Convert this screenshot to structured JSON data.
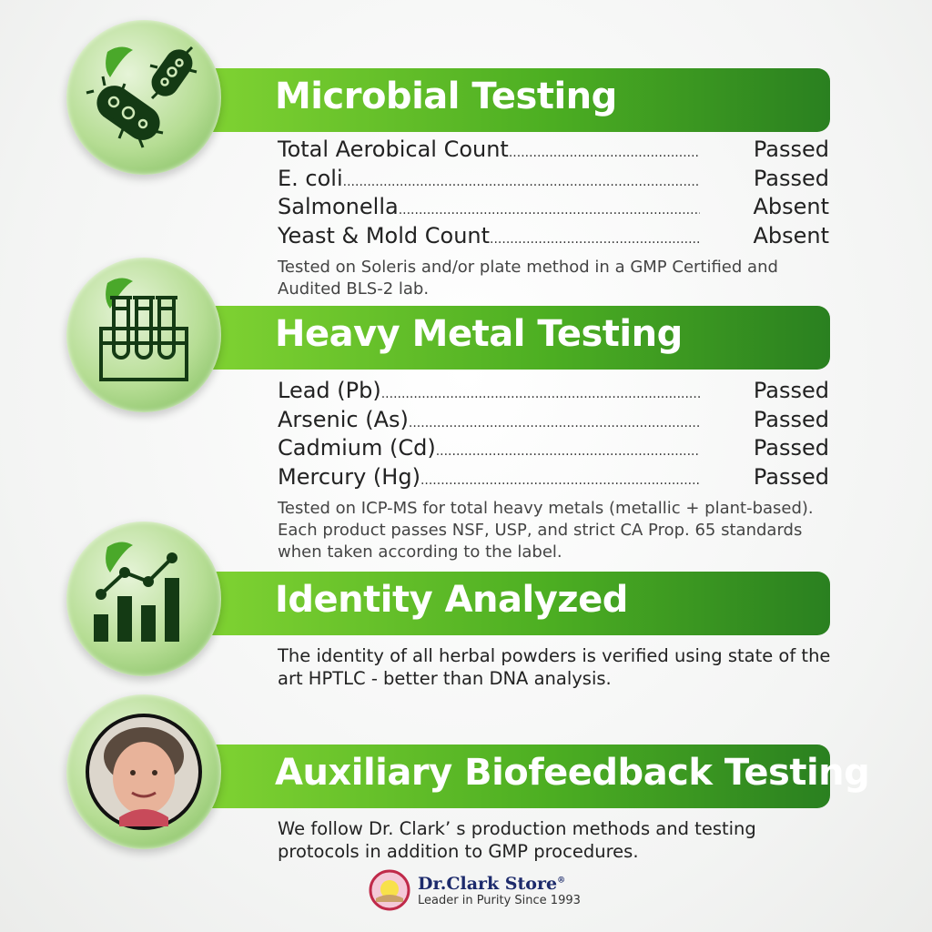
{
  "sections": [
    {
      "title": "Microbial Testing",
      "icon": "bacteria-icon",
      "rows": [
        {
          "label": "Total Aerobical Count",
          "value": "Passed"
        },
        {
          "label": "E. coli",
          "value": "Passed"
        },
        {
          "label": "Salmonella",
          "value": "Absent"
        },
        {
          "label": "Yeast & Mold Count",
          "value": "Absent"
        }
      ],
      "note": "Tested on Soleris and/or plate method in a GMP Certified and Audited BLS-2 lab."
    },
    {
      "title": "Heavy Metal Testing",
      "icon": "test-tubes-icon",
      "rows": [
        {
          "label": "Lead (Pb)",
          "value": "Passed"
        },
        {
          "label": "Arsenic (As)",
          "value": "Passed"
        },
        {
          "label": "Cadmium (Cd)",
          "value": "Passed"
        },
        {
          "label": "Mercury (Hg)",
          "value": "Passed"
        }
      ],
      "note": "Tested on ICP-MS for total heavy metals (metallic + plant-based). Each product passes NSF, USP, and strict CA Prop. 65 standards when taken according to the label."
    },
    {
      "title": "Identity Analyzed",
      "icon": "bar-chart-icon",
      "body": "The identity of all herbal powders is verified using state of the art HPTLC - better than DNA analysis."
    },
    {
      "title": "Auxiliary Biofeedback Testing",
      "icon": "portrait-photo",
      "body": "We follow Dr. Clark’ s production methods and testing protocols in addition to GMP procedures."
    }
  ],
  "logo": {
    "brand": "Dr.Clark Store",
    "registered": "®",
    "tagline": "Leader in Purity Since 1993"
  },
  "colors": {
    "banner_light": "#7fd232",
    "banner_dark": "#2a8020",
    "icon": "#143a14"
  }
}
